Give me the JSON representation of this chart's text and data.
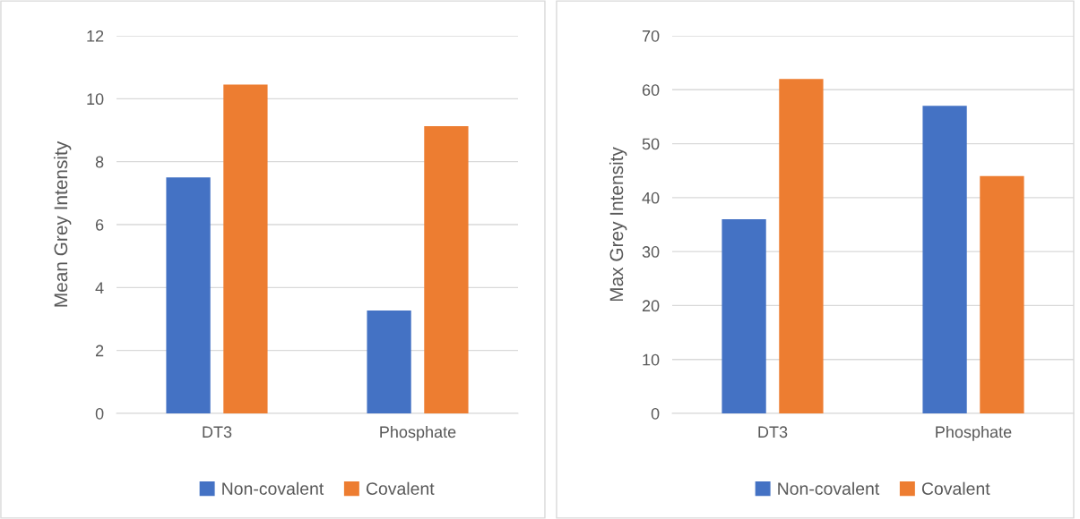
{
  "chart_data": [
    {
      "type": "bar",
      "ylabel": "Mean Grey Intensity",
      "categories": [
        "DT3",
        "Phosphate"
      ],
      "ylim": [
        0,
        12
      ],
      "yticks": [
        0,
        2,
        4,
        6,
        8,
        10,
        12
      ],
      "grid": "y",
      "legend": "bottom",
      "series": [
        {
          "name": "Non-covalent",
          "color": "#4472c4",
          "values": [
            7.5,
            3.27
          ]
        },
        {
          "name": "Covalent",
          "color": "#ed7d31",
          "values": [
            10.45,
            9.13
          ]
        }
      ]
    },
    {
      "type": "bar",
      "ylabel": "Max Grey Intensity",
      "categories": [
        "DT3",
        "Phosphate"
      ],
      "ylim": [
        0,
        70
      ],
      "yticks": [
        0,
        10,
        20,
        30,
        40,
        50,
        60,
        70
      ],
      "grid": "y",
      "legend": "bottom",
      "series": [
        {
          "name": "Non-covalent",
          "color": "#4472c4",
          "values": [
            36,
            57
          ]
        },
        {
          "name": "Covalent",
          "color": "#ed7d31",
          "values": [
            62,
            44
          ]
        }
      ]
    }
  ]
}
